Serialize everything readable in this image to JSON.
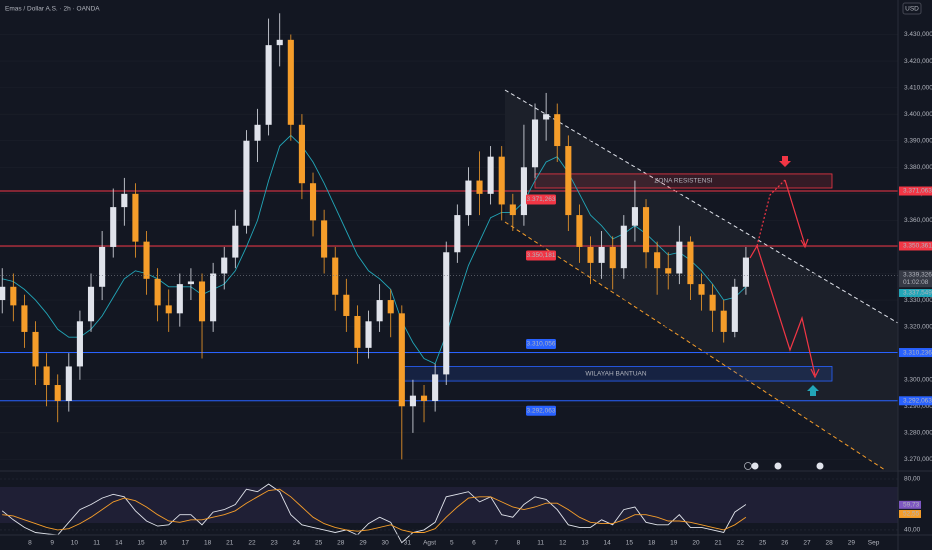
{
  "chart_data": {
    "type": "candlestick",
    "title": "Emas / Dollar A.S. · 2h · OANDA",
    "currency": "USD",
    "xlim": [
      -1.35,
      39.1
    ],
    "xticks": [
      {
        "value": 0,
        "label": "8"
      },
      {
        "value": 1,
        "label": "9"
      },
      {
        "value": 2,
        "label": "10"
      },
      {
        "value": 3,
        "label": "11"
      },
      {
        "value": 4,
        "label": "14"
      },
      {
        "value": 5,
        "label": "15"
      },
      {
        "value": 6,
        "label": "16"
      },
      {
        "value": 7,
        "label": "17"
      },
      {
        "value": 8,
        "label": "18"
      },
      {
        "value": 9,
        "label": "21"
      },
      {
        "value": 10,
        "label": "22"
      },
      {
        "value": 11,
        "label": "23"
      },
      {
        "value": 12,
        "label": "24"
      },
      {
        "value": 13,
        "label": "25"
      },
      {
        "value": 14,
        "label": "28"
      },
      {
        "value": 15,
        "label": "29"
      },
      {
        "value": 16,
        "label": "30"
      },
      {
        "value": 17,
        "label": "31"
      },
      {
        "value": 18,
        "label": "Agst"
      },
      {
        "value": 19,
        "label": "5"
      },
      {
        "value": 20,
        "label": "6"
      },
      {
        "value": 21,
        "label": "7"
      },
      {
        "value": 22,
        "label": "8"
      },
      {
        "value": 23,
        "label": "11"
      },
      {
        "value": 24,
        "label": "12"
      },
      {
        "value": 25,
        "label": "13"
      },
      {
        "value": 26,
        "label": "14"
      },
      {
        "value": 27,
        "label": "15"
      },
      {
        "value": 28,
        "label": "18"
      },
      {
        "value": 29,
        "label": "19"
      },
      {
        "value": 30,
        "label": "20"
      },
      {
        "value": 31,
        "label": "21"
      },
      {
        "value": 32,
        "label": "22"
      },
      {
        "value": 33,
        "label": "25"
      },
      {
        "value": 34,
        "label": "26"
      },
      {
        "value": 35,
        "label": "27"
      },
      {
        "value": 36,
        "label": "28"
      },
      {
        "value": 37,
        "label": "29"
      },
      {
        "value": 38,
        "label": "Sep"
      }
    ],
    "ylim": [
      3266,
      3443
    ],
    "yticks": [
      {
        "value": 3270,
        "label": "3.270,000"
      },
      {
        "value": 3280,
        "label": "3.280,000"
      },
      {
        "value": 3290,
        "label": "3.290,000"
      },
      {
        "value": 3300,
        "label": "3.300,000"
      },
      {
        "value": 3310,
        "label": "3.310,000"
      },
      {
        "value": 3320,
        "label": "3.320,000"
      },
      {
        "value": 3330,
        "label": "3.330,000"
      },
      {
        "value": 3340,
        "label": "3.340,000"
      },
      {
        "value": 3350,
        "label": "3.350,000"
      },
      {
        "value": 3360,
        "label": "3.360,000"
      },
      {
        "value": 3370,
        "label": "3.370,000"
      },
      {
        "value": 3380,
        "label": "3.380,000"
      },
      {
        "value": 3390,
        "label": "3.390,000"
      },
      {
        "value": 3400,
        "label": "3.400,000"
      },
      {
        "value": 3410,
        "label": "3.410,000"
      },
      {
        "value": 3420,
        "label": "3.420,000"
      },
      {
        "value": 3430,
        "label": "3.430,000"
      }
    ],
    "up_color": "#e0e3eb",
    "down_color": "#f59d2a",
    "candles": {
      "x": [
        -1.25,
        -0.75,
        -0.25,
        0.25,
        0.75,
        1.25,
        1.75,
        2.25,
        2.75,
        3.25,
        3.75,
        4.25,
        4.75,
        5.25,
        5.75,
        6.25,
        6.75,
        7.25,
        7.75,
        8.25,
        8.75,
        9.25,
        9.75,
        10.25,
        10.75,
        11.25,
        11.75,
        12.25,
        12.75,
        13.25,
        13.75,
        14.25,
        14.75,
        15.25,
        15.75,
        16.25,
        16.75,
        17.25,
        17.75,
        18.25,
        18.75,
        19.25,
        19.75,
        20.25,
        20.75,
        21.25,
        21.75,
        22.25,
        22.75,
        23.25,
        23.75,
        24.25,
        24.75,
        25.25,
        25.75,
        26.25,
        26.75,
        27.25,
        27.75,
        28.25,
        28.75,
        29.25,
        29.75,
        30.25,
        30.75,
        31.25,
        31.75,
        32.25
      ],
      "open": [
        3330,
        3335,
        3328,
        3318,
        3305,
        3298,
        3292,
        3305,
        3322,
        3335,
        3350,
        3365,
        3370,
        3352,
        3338,
        3328,
        3325,
        3336,
        3337,
        3322,
        3340,
        3346,
        3358,
        3390,
        3396,
        3426,
        3428,
        3396,
        3374,
        3360,
        3346,
        3332,
        3324,
        3312,
        3322,
        3330,
        3325,
        3290,
        3294,
        3292,
        3302,
        3348,
        3362,
        3375,
        3370,
        3384,
        3366,
        3362,
        3380,
        3398,
        3400,
        3388,
        3362,
        3350,
        3344,
        3350,
        3342,
        3358,
        3365,
        3348,
        3342,
        3340,
        3352,
        3336,
        3332,
        3326,
        3318,
        3335
      ],
      "high": [
        3342,
        3340,
        3332,
        3322,
        3310,
        3302,
        3310,
        3326,
        3340,
        3356,
        3372,
        3376,
        3374,
        3356,
        3342,
        3334,
        3340,
        3342,
        3340,
        3344,
        3350,
        3364,
        3394,
        3402,
        3436,
        3438,
        3430,
        3400,
        3378,
        3364,
        3350,
        3338,
        3328,
        3326,
        3336,
        3334,
        3328,
        3300,
        3298,
        3306,
        3352,
        3366,
        3380,
        3386,
        3388,
        3388,
        3370,
        3396,
        3404,
        3408,
        3404,
        3392,
        3366,
        3354,
        3356,
        3354,
        3362,
        3375,
        3368,
        3352,
        3348,
        3358,
        3354,
        3340,
        3336,
        3330,
        3338,
        3350
      ],
      "low": [
        3325,
        3322,
        3312,
        3298,
        3290,
        3284,
        3288,
        3300,
        3318,
        3330,
        3346,
        3358,
        3346,
        3332,
        3322,
        3318,
        3320,
        3330,
        3308,
        3318,
        3334,
        3342,
        3355,
        3382,
        3392,
        3418,
        3390,
        3368,
        3354,
        3340,
        3326,
        3318,
        3306,
        3308,
        3318,
        3316,
        3270,
        3280,
        3284,
        3288,
        3298,
        3344,
        3358,
        3362,
        3366,
        3360,
        3356,
        3358,
        3376,
        3390,
        3382,
        3356,
        3344,
        3336,
        3338,
        3334,
        3338,
        3352,
        3342,
        3332,
        3334,
        3336,
        3330,
        3326,
        3318,
        3314,
        3316,
        3332
      ],
      "close": [
        3335,
        3328,
        3318,
        3305,
        3298,
        3292,
        3305,
        3322,
        3335,
        3350,
        3365,
        3370,
        3352,
        3338,
        3328,
        3325,
        3336,
        3337,
        3322,
        3340,
        3346,
        3358,
        3390,
        3396,
        3426,
        3428,
        3396,
        3374,
        3360,
        3346,
        3332,
        3324,
        3312,
        3322,
        3330,
        3325,
        3290,
        3294,
        3292,
        3302,
        3348,
        3362,
        3375,
        3370,
        3384,
        3366,
        3362,
        3380,
        3398,
        3400,
        3388,
        3362,
        3350,
        3344,
        3350,
        3342,
        3358,
        3365,
        3348,
        3342,
        3340,
        3352,
        3336,
        3332,
        3326,
        3318,
        3335,
        3346
      ]
    },
    "ma": {
      "color": "#22a6b8",
      "values": [
        3338,
        3337,
        3334,
        3330,
        3325,
        3319,
        3316,
        3316,
        3319,
        3324,
        3331,
        3338,
        3341,
        3340,
        3338,
        3335,
        3335,
        3335,
        3332,
        3334,
        3336,
        3341,
        3350,
        3360,
        3375,
        3388,
        3392,
        3388,
        3382,
        3374,
        3365,
        3356,
        3347,
        3341,
        3338,
        3334,
        3322,
        3314,
        3308,
        3306,
        3317,
        3330,
        3343,
        3352,
        3361,
        3363,
        3363,
        3367,
        3375,
        3382,
        3384,
        3378,
        3370,
        3362,
        3358,
        3353,
        3355,
        3358,
        3355,
        3351,
        3347,
        3348,
        3345,
        3341,
        3336,
        3330,
        3331,
        3335
      ]
    },
    "levels": [
      {
        "value": 3371.063,
        "label": "3.371,063",
        "color": "#f23645"
      },
      {
        "value": 3350.361,
        "label": "3.350,361",
        "color": "#f23645"
      },
      {
        "value": 3310.236,
        "label": "3.310,236",
        "color": "#2962ff"
      },
      {
        "value": 3292.063,
        "label": "3.292,063",
        "color": "#2962ff"
      }
    ],
    "level_tags": [
      {
        "value": 3371.263,
        "label": "3.371,263",
        "color": "#f23645"
      },
      {
        "value": 3350.181,
        "label": "3.350,181",
        "color": "#f23645"
      },
      {
        "value": 3310.056,
        "label": "3.310,056",
        "color": "#2962ff"
      },
      {
        "value": 3292.063,
        "label": "3.292,063",
        "color": "#2962ff"
      }
    ],
    "zones": [
      {
        "label": "ZONA RESISTENSI",
        "range": [
          3372.2,
          3377.5
        ],
        "color": "#f23645"
      },
      {
        "label": "WILAYAH BANTUAN",
        "range": [
          3299.5,
          3305
        ],
        "color": "#2962ff"
      }
    ],
    "price_tag": {
      "value": 3339.326,
      "label": "3.339,326",
      "countdown": "01:02:08"
    },
    "ma_tag": {
      "value": 3337.549,
      "label": "3.337,549"
    },
    "rsi": {
      "ylim": [
        37.6,
        85.5
      ],
      "yticks": [
        {
          "value": 80,
          "label": "80,00"
        },
        {
          "value": 40,
          "label": "40,00"
        }
      ],
      "color": "#e0e3eb",
      "values": [
        55,
        48,
        42,
        38,
        37,
        36,
        46,
        56,
        60,
        65,
        68,
        66,
        55,
        47,
        43,
        44,
        52,
        52,
        44,
        54,
        56,
        60,
        72,
        70,
        76,
        70,
        52,
        44,
        42,
        40,
        38,
        40,
        36,
        45,
        50,
        46,
        30,
        38,
        40,
        46,
        66,
        68,
        70,
        62,
        66,
        52,
        50,
        60,
        66,
        64,
        56,
        44,
        42,
        42,
        48,
        44,
        56,
        58,
        46,
        44,
        44,
        52,
        42,
        42,
        40,
        38,
        54,
        60
      ],
      "ma_color": "#f59d2a",
      "ma": [
        52,
        51,
        48,
        45,
        42,
        40,
        41,
        45,
        50,
        56,
        62,
        65,
        63,
        58,
        52,
        47,
        46,
        48,
        48,
        50,
        52,
        55,
        61,
        66,
        71,
        72,
        66,
        58,
        50,
        45,
        42,
        40,
        39,
        40,
        42,
        44,
        40,
        38,
        38,
        41,
        50,
        58,
        65,
        66,
        66,
        62,
        58,
        56,
        58,
        61,
        61,
        56,
        50,
        46,
        45,
        45,
        48,
        52,
        52,
        50,
        47,
        47,
        46,
        44,
        42,
        40,
        44,
        50
      ],
      "tags": [
        {
          "value": 59.73,
          "label": "59,73",
          "color": "#7e57c2"
        },
        {
          "value": 52.55,
          "label": "52,55",
          "color": "#f59d2a"
        }
      ]
    }
  }
}
